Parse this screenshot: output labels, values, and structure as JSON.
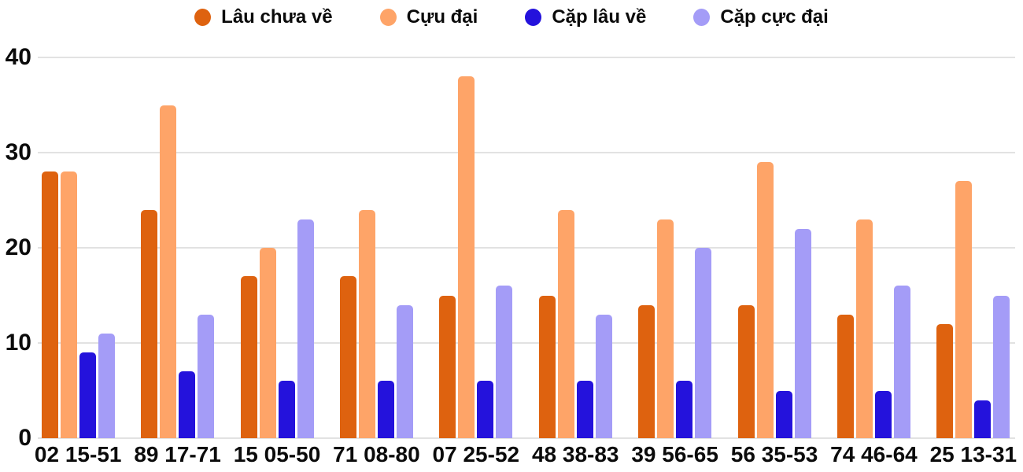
{
  "style": {
    "background": "#ffffff",
    "grid_color": "#e2e2e2",
    "text_color": "#0b0b0b"
  },
  "chart_data": {
    "type": "bar",
    "title": "",
    "xlabel": "",
    "ylabel": "",
    "grid": true,
    "legend_position": "top",
    "ylim": [
      0,
      40
    ],
    "yticks": [
      0,
      10,
      20,
      30,
      40
    ],
    "categories": [
      "02 15-51",
      "89 17-71",
      "15 05-50",
      "71 08-80",
      "07 25-52",
      "48 38-83",
      "39 56-65",
      "56 35-53",
      "74 46-64",
      "25 13-31"
    ],
    "series": [
      {
        "name": "Lâu chưa về",
        "color": "#de620f",
        "values": [
          28,
          24,
          17,
          17,
          15,
          15,
          14,
          14,
          13,
          12
        ]
      },
      {
        "name": "Cựu đại",
        "color": "#fea468",
        "values": [
          28,
          35,
          20,
          24,
          38,
          24,
          23,
          29,
          23,
          27
        ]
      },
      {
        "name": "Cặp lâu về",
        "color": "#2412dc",
        "values": [
          9,
          7,
          6,
          6,
          6,
          6,
          6,
          5,
          5,
          4
        ]
      },
      {
        "name": "Cặp cực đại",
        "color": "#a49cf7",
        "values": [
          11,
          13,
          23,
          14,
          16,
          13,
          20,
          22,
          16,
          15
        ]
      }
    ]
  }
}
